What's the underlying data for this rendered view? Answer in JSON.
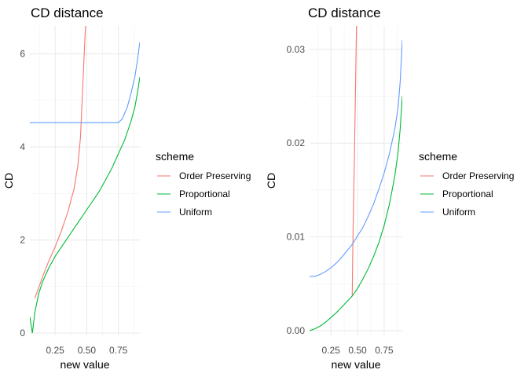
{
  "chart_data": [
    {
      "type": "line",
      "title": "CD distance",
      "xlabel": "new value",
      "ylabel": "CD",
      "xlim": [
        0.05,
        0.92
      ],
      "ylim": [
        -0.05,
        6.6
      ],
      "xticks": [
        0.25,
        0.5,
        0.75
      ],
      "xtick_labels": [
        "0.25",
        "0.50",
        "0.75"
      ],
      "yticks": [
        0,
        2,
        4,
        6
      ],
      "ytick_labels": [
        "0",
        "2",
        "4",
        "6"
      ],
      "grid": true,
      "legend": {
        "title": "scheme",
        "position": "right"
      },
      "series": [
        {
          "name": "Order Preserving",
          "color": "#F8766D",
          "x": [
            0.09,
            0.15,
            0.2,
            0.25,
            0.3,
            0.35,
            0.4,
            0.43,
            0.45,
            0.46,
            0.47,
            0.48,
            0.49
          ],
          "y": [
            0.75,
            1.2,
            1.55,
            1.85,
            2.2,
            2.6,
            3.1,
            3.6,
            4.2,
            4.8,
            5.4,
            6.0,
            6.6
          ]
        },
        {
          "name": "Proportional",
          "color": "#00BA38",
          "x": [
            0.05,
            0.07,
            0.09,
            0.12,
            0.15,
            0.2,
            0.25,
            0.3,
            0.35,
            0.4,
            0.45,
            0.5,
            0.55,
            0.6,
            0.65,
            0.7,
            0.75,
            0.8,
            0.85,
            0.88,
            0.9,
            0.92
          ],
          "y": [
            0.35,
            0.0,
            0.45,
            0.85,
            1.1,
            1.4,
            1.65,
            1.85,
            2.05,
            2.25,
            2.45,
            2.65,
            2.85,
            3.05,
            3.3,
            3.55,
            3.85,
            4.15,
            4.55,
            4.85,
            5.15,
            5.5
          ]
        },
        {
          "name": "Uniform",
          "color": "#619CFF",
          "x": [
            0.05,
            0.2,
            0.4,
            0.6,
            0.75,
            0.78,
            0.82,
            0.85,
            0.88,
            0.9,
            0.92
          ],
          "y": [
            4.52,
            4.52,
            4.52,
            4.52,
            4.52,
            4.6,
            4.85,
            5.15,
            5.5,
            5.85,
            6.25
          ]
        }
      ]
    },
    {
      "type": "line",
      "title": "CD distance",
      "xlabel": "new value",
      "ylabel": "CD",
      "xlim": [
        0.05,
        0.92
      ],
      "ylim": [
        -0.0005,
        0.0325
      ],
      "xticks": [
        0.25,
        0.5,
        0.75
      ],
      "xtick_labels": [
        "0.25",
        "0.50",
        "0.75"
      ],
      "yticks": [
        0,
        0.01,
        0.02,
        0.03
      ],
      "ytick_labels": [
        "0.00",
        "0.01",
        "0.02",
        "0.03"
      ],
      "grid": true,
      "legend": {
        "title": "scheme",
        "position": "right"
      },
      "series": [
        {
          "name": "Order Preserving",
          "color": "#F8766D",
          "x": [
            0.45,
            0.455,
            0.46,
            0.47,
            0.48,
            0.49
          ],
          "y": [
            0.0037,
            0.008,
            0.012,
            0.018,
            0.025,
            0.0325
          ]
        },
        {
          "name": "Proportional",
          "color": "#00BA38",
          "x": [
            0.05,
            0.1,
            0.15,
            0.2,
            0.25,
            0.3,
            0.35,
            0.4,
            0.45,
            0.5,
            0.55,
            0.6,
            0.65,
            0.7,
            0.75,
            0.8,
            0.85,
            0.88,
            0.9,
            0.92
          ],
          "y": [
            0.0,
            0.0002,
            0.0005,
            0.0009,
            0.0014,
            0.0019,
            0.0025,
            0.0031,
            0.0037,
            0.0045,
            0.0055,
            0.0066,
            0.0079,
            0.0094,
            0.0112,
            0.0135,
            0.0165,
            0.019,
            0.0215,
            0.025
          ]
        },
        {
          "name": "Uniform",
          "color": "#619CFF",
          "x": [
            0.05,
            0.1,
            0.15,
            0.2,
            0.25,
            0.3,
            0.35,
            0.4,
            0.45,
            0.5,
            0.55,
            0.6,
            0.65,
            0.7,
            0.75,
            0.8,
            0.85,
            0.88,
            0.9,
            0.92
          ],
          "y": [
            0.0058,
            0.0058,
            0.006,
            0.0063,
            0.0067,
            0.0072,
            0.0078,
            0.0085,
            0.0092,
            0.0101,
            0.011,
            0.0122,
            0.0135,
            0.0151,
            0.0168,
            0.0189,
            0.0215,
            0.0238,
            0.0265,
            0.031
          ]
        }
      ]
    }
  ]
}
